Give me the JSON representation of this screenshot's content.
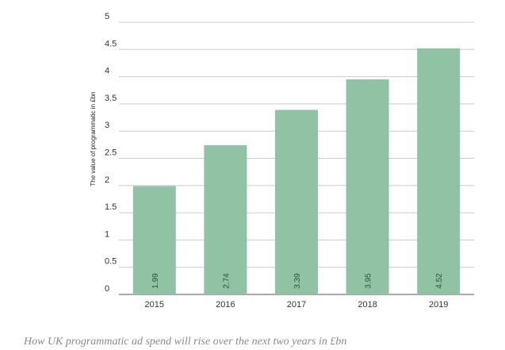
{
  "chart_data": {
    "type": "bar",
    "categories": [
      "2015",
      "2016",
      "2017",
      "2018",
      "2019"
    ],
    "values": [
      1.99,
      2.74,
      3.39,
      3.95,
      4.52
    ],
    "data_labels": [
      "1.99",
      "2.74",
      "3.39",
      "3.95",
      "4.52"
    ],
    "y_ticks": [
      "0",
      "0.5",
      "1",
      "1.5",
      "2",
      "2.5",
      "3",
      "3.5",
      "4",
      "4.5",
      "5"
    ],
    "ylabel": "The value of programmatic in £bn",
    "xlabel": "",
    "ylim": [
      0,
      5
    ],
    "grid": true,
    "bar_color": "#8fc3a4",
    "grid_color": "#cccccc"
  },
  "caption": "How UK programmatic ad spend will rise over the next two years in £bn"
}
